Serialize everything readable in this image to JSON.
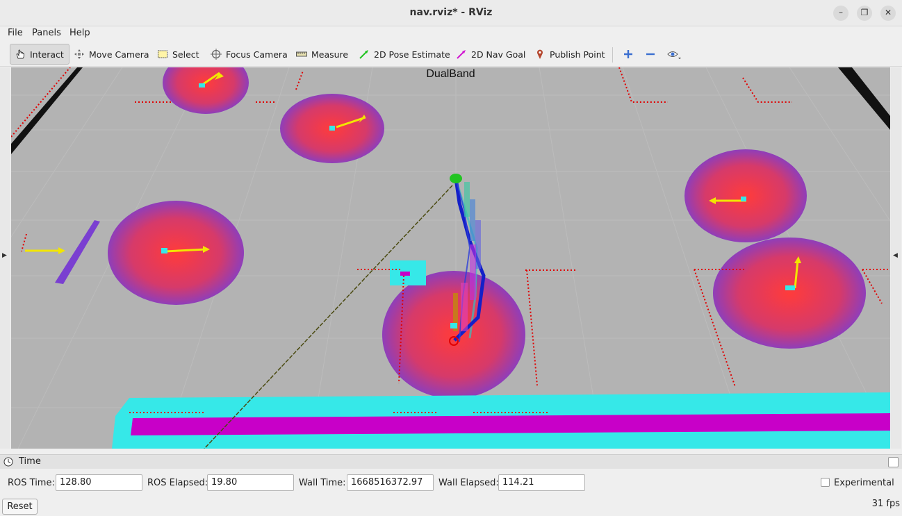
{
  "window": {
    "title": "nav.rviz* - RViz",
    "minimize_icon": "minimize-icon",
    "maximize_icon": "maximize-icon",
    "close_icon": "close-icon"
  },
  "menu": [
    "File",
    "Panels",
    "Help"
  ],
  "toolbar": {
    "interact": "Interact",
    "move_camera": "Move Camera",
    "select": "Select",
    "focus_camera": "Focus Camera",
    "measure": "Measure",
    "pose_estimate": "2D Pose Estimate",
    "nav_goal": "2D Nav Goal",
    "publish_point": "Publish Point"
  },
  "viewport": {
    "overlay_text": "DualBand"
  },
  "time_panel": {
    "title": "Time",
    "ros_time_label": "ROS Time:",
    "ros_time": "128.80",
    "ros_elapsed_label": "ROS Elapsed:",
    "ros_elapsed": "19.80",
    "wall_time_label": "Wall Time:",
    "wall_time": "1668516372.97",
    "wall_elapsed_label": "Wall Elapsed:",
    "wall_elapsed": "114.21",
    "experimental_label": "Experimental",
    "reset_label": "Reset",
    "fps": "31 fps"
  },
  "colors": {
    "grid_bg": "#a0a0a0",
    "costmap_red": "#ff3b3b",
    "costmap_purple": "#7a3fd1",
    "cyan": "#36e8e8",
    "magenta": "#c800c8",
    "path_blue": "#1420c8",
    "arrow_yellow": "#f2e600",
    "laser_red": "#e00000"
  }
}
